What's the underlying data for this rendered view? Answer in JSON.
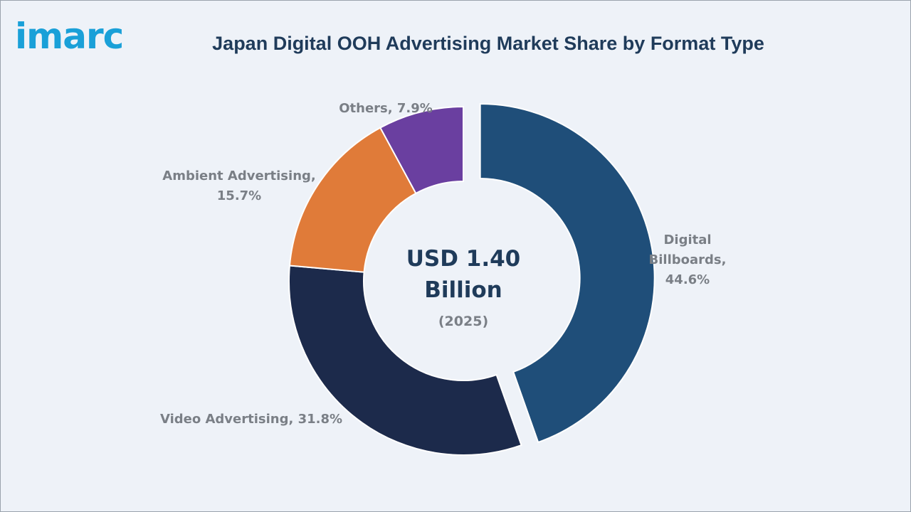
{
  "logo": {
    "text": "imarc"
  },
  "title": "Japan Digital OOH Advertising Market Share by Format Type",
  "center": {
    "line1": "USD 1.40",
    "line2": "Billion",
    "line3": "(2025)"
  },
  "chart_data": {
    "type": "pie",
    "title": "Japan Digital OOH Advertising Market Share by Format Type",
    "unit": "%",
    "categories": [
      "Digital Billboards",
      "Video Advertising",
      "Ambient Advertising",
      "Others"
    ],
    "values": [
      44.6,
      31.8,
      15.7,
      7.9
    ],
    "labels": [
      [
        "Digital",
        "Billboards,",
        "44.6%"
      ],
      [
        "Video Advertising, 31.8%"
      ],
      [
        "Ambient Advertising,",
        "15.7%"
      ],
      [
        "Others, 7.9%"
      ]
    ],
    "colors": [
      "#1f4e79",
      "#1c2a4b",
      "#e07b39",
      "#6a3fa0"
    ],
    "exploded": "Digital Billboards",
    "donut": true
  }
}
